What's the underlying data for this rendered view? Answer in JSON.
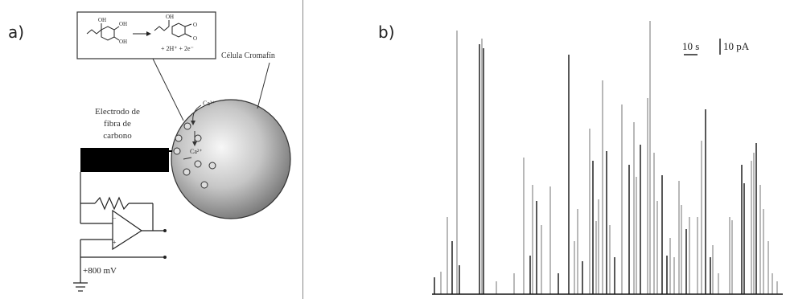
{
  "panel_a": {
    "label": "a)",
    "reaction_text": "+ 2H⁺ + 2e⁻",
    "cell_label": "Célula Cromafín",
    "electrode_label": [
      "Electrodo de",
      "fibra de",
      "carbono"
    ],
    "ca_in_label": "Ca²⁺",
    "ca_out_label": "Ca²⁺",
    "voltage_label": "+800 mV",
    "colors": {
      "electrode": "#000000",
      "cell_gradient_center": "#f5f5f5",
      "cell_gradient_edge": "#7a7a7a"
    }
  },
  "panel_b": {
    "label": "b)",
    "scale_time": "10 s",
    "scale_current": "10 pA",
    "trace_color_dark": "#111111",
    "trace_color_light": "#8a8a8a"
  }
}
